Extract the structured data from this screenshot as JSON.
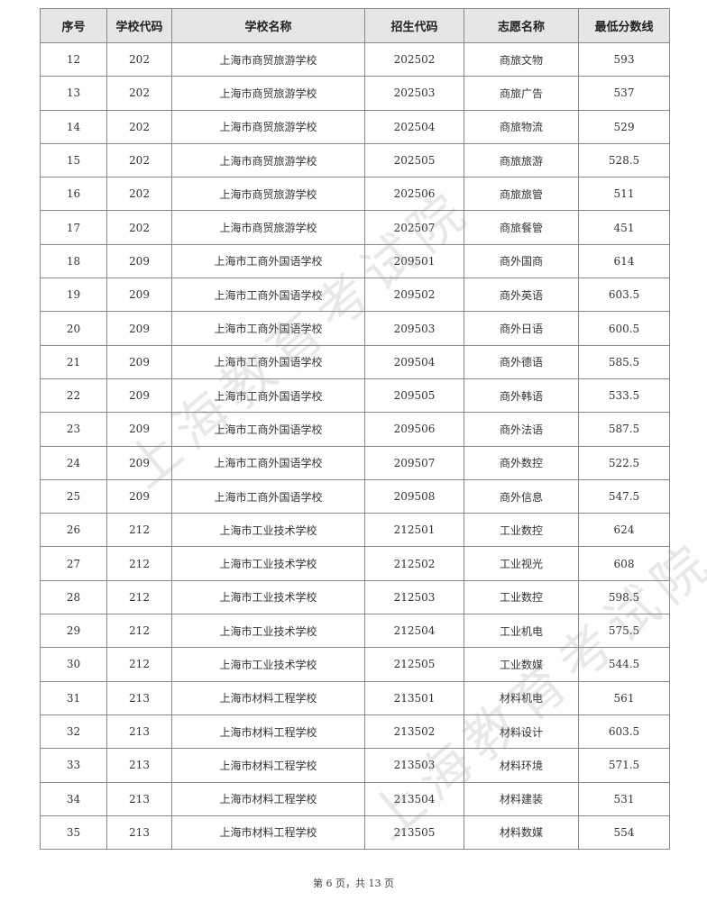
{
  "watermark": "上海教育考试院",
  "table": {
    "headers": [
      "序号",
      "学校代码",
      "学校名称",
      "招生代码",
      "志愿名称",
      "最低分数线"
    ],
    "rows": [
      [
        "12",
        "202",
        "上海市商贸旅游学校",
        "202502",
        "商旅文物",
        "593"
      ],
      [
        "13",
        "202",
        "上海市商贸旅游学校",
        "202503",
        "商旅广告",
        "537"
      ],
      [
        "14",
        "202",
        "上海市商贸旅游学校",
        "202504",
        "商旅物流",
        "529"
      ],
      [
        "15",
        "202",
        "上海市商贸旅游学校",
        "202505",
        "商旅旅游",
        "528.5"
      ],
      [
        "16",
        "202",
        "上海市商贸旅游学校",
        "202506",
        "商旅旅管",
        "511"
      ],
      [
        "17",
        "202",
        "上海市商贸旅游学校",
        "202507",
        "商旅餐管",
        "451"
      ],
      [
        "18",
        "209",
        "上海市工商外国语学校",
        "209501",
        "商外国商",
        "614"
      ],
      [
        "19",
        "209",
        "上海市工商外国语学校",
        "209502",
        "商外英语",
        "603.5"
      ],
      [
        "20",
        "209",
        "上海市工商外国语学校",
        "209503",
        "商外日语",
        "600.5"
      ],
      [
        "21",
        "209",
        "上海市工商外国语学校",
        "209504",
        "商外德语",
        "585.5"
      ],
      [
        "22",
        "209",
        "上海市工商外国语学校",
        "209505",
        "商外韩语",
        "533.5"
      ],
      [
        "23",
        "209",
        "上海市工商外国语学校",
        "209506",
        "商外法语",
        "587.5"
      ],
      [
        "24",
        "209",
        "上海市工商外国语学校",
        "209507",
        "商外数控",
        "522.5"
      ],
      [
        "25",
        "209",
        "上海市工商外国语学校",
        "209508",
        "商外信息",
        "547.5"
      ],
      [
        "26",
        "212",
        "上海市工业技术学校",
        "212501",
        "工业数控",
        "624"
      ],
      [
        "27",
        "212",
        "上海市工业技术学校",
        "212502",
        "工业视光",
        "608"
      ],
      [
        "28",
        "212",
        "上海市工业技术学校",
        "212503",
        "工业数控",
        "598.5"
      ],
      [
        "29",
        "212",
        "上海市工业技术学校",
        "212504",
        "工业机电",
        "575.5"
      ],
      [
        "30",
        "212",
        "上海市工业技术学校",
        "212505",
        "工业数媒",
        "544.5"
      ],
      [
        "31",
        "213",
        "上海市材料工程学校",
        "213501",
        "材料机电",
        "561"
      ],
      [
        "32",
        "213",
        "上海市材料工程学校",
        "213502",
        "材料设计",
        "603.5"
      ],
      [
        "33",
        "213",
        "上海市材料工程学校",
        "213503",
        "材料环境",
        "571.5"
      ],
      [
        "34",
        "213",
        "上海市材料工程学校",
        "213504",
        "材料建装",
        "531"
      ],
      [
        "35",
        "213",
        "上海市材料工程学校",
        "213505",
        "材料数媒",
        "554"
      ]
    ]
  },
  "footer": "第 6 页，共 13 页"
}
